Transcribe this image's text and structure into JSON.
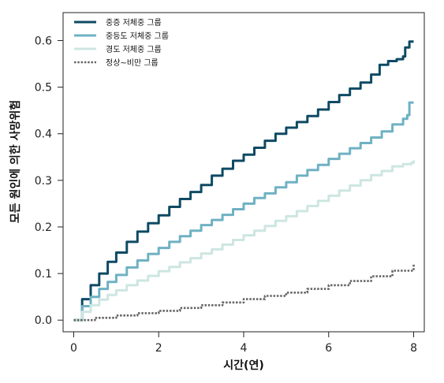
{
  "chart_data": {
    "type": "line",
    "title": "",
    "xlabel": "시간(연)",
    "ylabel": "모든 원인에 의한 사망위험",
    "xlim": [
      -0.25,
      8.25
    ],
    "ylim": [
      -0.025,
      0.66
    ],
    "xticks": [
      0,
      2,
      4,
      6,
      8
    ],
    "yticks": [
      0.0,
      0.1,
      0.2,
      0.3,
      0.4,
      0.5,
      0.6
    ],
    "ytick_labels": [
      "0.0",
      "0.1",
      "0.2",
      "0.3",
      "0.4",
      "0.5",
      "0.6"
    ],
    "grid": false,
    "legend_position": "top-left",
    "series": [
      {
        "name": "중증 저체중 그룹",
        "color": "#0e4a63",
        "style": "solid",
        "x": [
          0,
          0.2,
          0.4,
          0.6,
          0.8,
          1.0,
          1.25,
          1.5,
          1.75,
          2.0,
          2.25,
          2.5,
          2.75,
          3.0,
          3.25,
          3.5,
          3.75,
          4.0,
          4.25,
          4.5,
          4.75,
          5.0,
          5.25,
          5.5,
          5.75,
          6.0,
          6.25,
          6.5,
          6.75,
          7.0,
          7.2,
          7.4,
          7.6,
          7.75,
          7.8,
          7.9,
          8.0
        ],
        "y": [
          0.0,
          0.045,
          0.075,
          0.1,
          0.125,
          0.145,
          0.168,
          0.19,
          0.208,
          0.225,
          0.243,
          0.26,
          0.275,
          0.29,
          0.31,
          0.325,
          0.342,
          0.355,
          0.37,
          0.385,
          0.4,
          0.413,
          0.425,
          0.438,
          0.452,
          0.468,
          0.483,
          0.497,
          0.51,
          0.527,
          0.548,
          0.556,
          0.56,
          0.566,
          0.585,
          0.598,
          0.598
        ]
      },
      {
        "name": "중등도 저체중 그룹",
        "color": "#6fb1c3",
        "style": "solid",
        "x": [
          0,
          0.2,
          0.4,
          0.6,
          0.8,
          1.0,
          1.25,
          1.5,
          1.75,
          2.0,
          2.25,
          2.5,
          2.75,
          3.0,
          3.25,
          3.5,
          3.75,
          4.0,
          4.25,
          4.5,
          4.75,
          5.0,
          5.25,
          5.5,
          5.75,
          6.0,
          6.25,
          6.5,
          6.75,
          7.0,
          7.25,
          7.5,
          7.75,
          7.85,
          7.9,
          8.0
        ],
        "y": [
          0.0,
          0.03,
          0.05,
          0.067,
          0.082,
          0.097,
          0.113,
          0.128,
          0.142,
          0.155,
          0.168,
          0.18,
          0.192,
          0.204,
          0.215,
          0.226,
          0.238,
          0.25,
          0.262,
          0.272,
          0.285,
          0.296,
          0.31,
          0.322,
          0.333,
          0.346,
          0.357,
          0.369,
          0.38,
          0.392,
          0.405,
          0.42,
          0.432,
          0.44,
          0.467,
          0.467
        ]
      },
      {
        "name": "경도 저체중 그룹",
        "color": "#cde6e2",
        "style": "solid",
        "x": [
          0,
          0.2,
          0.4,
          0.6,
          0.8,
          1.0,
          1.25,
          1.5,
          1.75,
          2.0,
          2.25,
          2.5,
          2.75,
          3.0,
          3.25,
          3.5,
          3.75,
          4.0,
          4.25,
          4.5,
          4.75,
          5.0,
          5.25,
          5.5,
          5.75,
          6.0,
          6.25,
          6.5,
          6.75,
          7.0,
          7.25,
          7.5,
          7.75,
          7.95,
          8.0
        ],
        "y": [
          0.0,
          0.018,
          0.032,
          0.044,
          0.054,
          0.064,
          0.075,
          0.085,
          0.095,
          0.105,
          0.114,
          0.124,
          0.133,
          0.143,
          0.152,
          0.162,
          0.172,
          0.182,
          0.192,
          0.202,
          0.213,
          0.223,
          0.234,
          0.245,
          0.256,
          0.267,
          0.278,
          0.289,
          0.3,
          0.311,
          0.32,
          0.33,
          0.335,
          0.338,
          0.343
        ]
      },
      {
        "name": "정상~비만 그룹",
        "color": "#666666",
        "style": "dotted",
        "x": [
          0,
          0.5,
          1.0,
          1.5,
          2.0,
          2.5,
          3.0,
          3.5,
          4.0,
          4.5,
          5.0,
          5.5,
          6.0,
          6.5,
          7.0,
          7.5,
          8.0
        ],
        "y": [
          0.0,
          0.005,
          0.01,
          0.015,
          0.02,
          0.026,
          0.032,
          0.038,
          0.045,
          0.052,
          0.059,
          0.067,
          0.075,
          0.084,
          0.094,
          0.106,
          0.12
        ]
      }
    ]
  }
}
